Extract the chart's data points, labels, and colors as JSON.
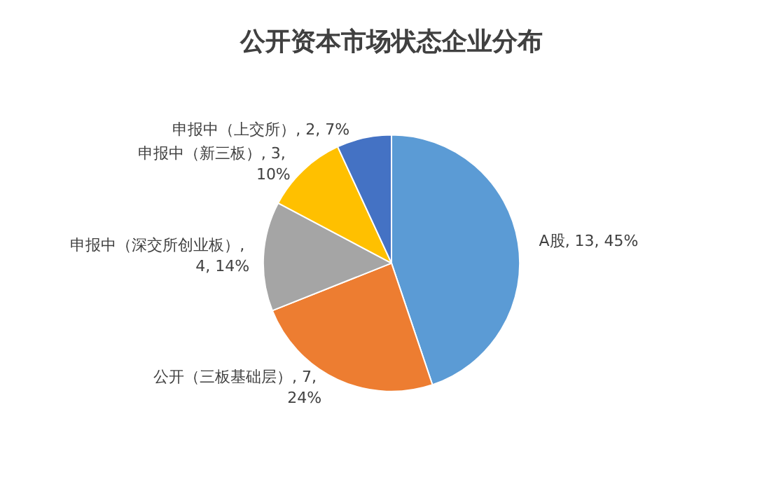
{
  "chart_data": {
    "type": "pie",
    "title": "公开资本市场状态企业分布",
    "categories": [
      "A股",
      "公开（三板基础层）",
      "申报中（深交所创业板）",
      "申报中（新三板）",
      "申报中（上交所）"
    ],
    "values": [
      13,
      7,
      4,
      3,
      2
    ],
    "value_labels": [
      ", 13, 45%",
      ", 7, 24%",
      ", 4, 14%",
      ", 3, 10%",
      ", 2, 7%"
    ],
    "colors": [
      "#5b9bd5",
      "#ed7d31",
      "#a5a5a5",
      "#ffc000",
      "#4472c4"
    ],
    "legend": false
  }
}
